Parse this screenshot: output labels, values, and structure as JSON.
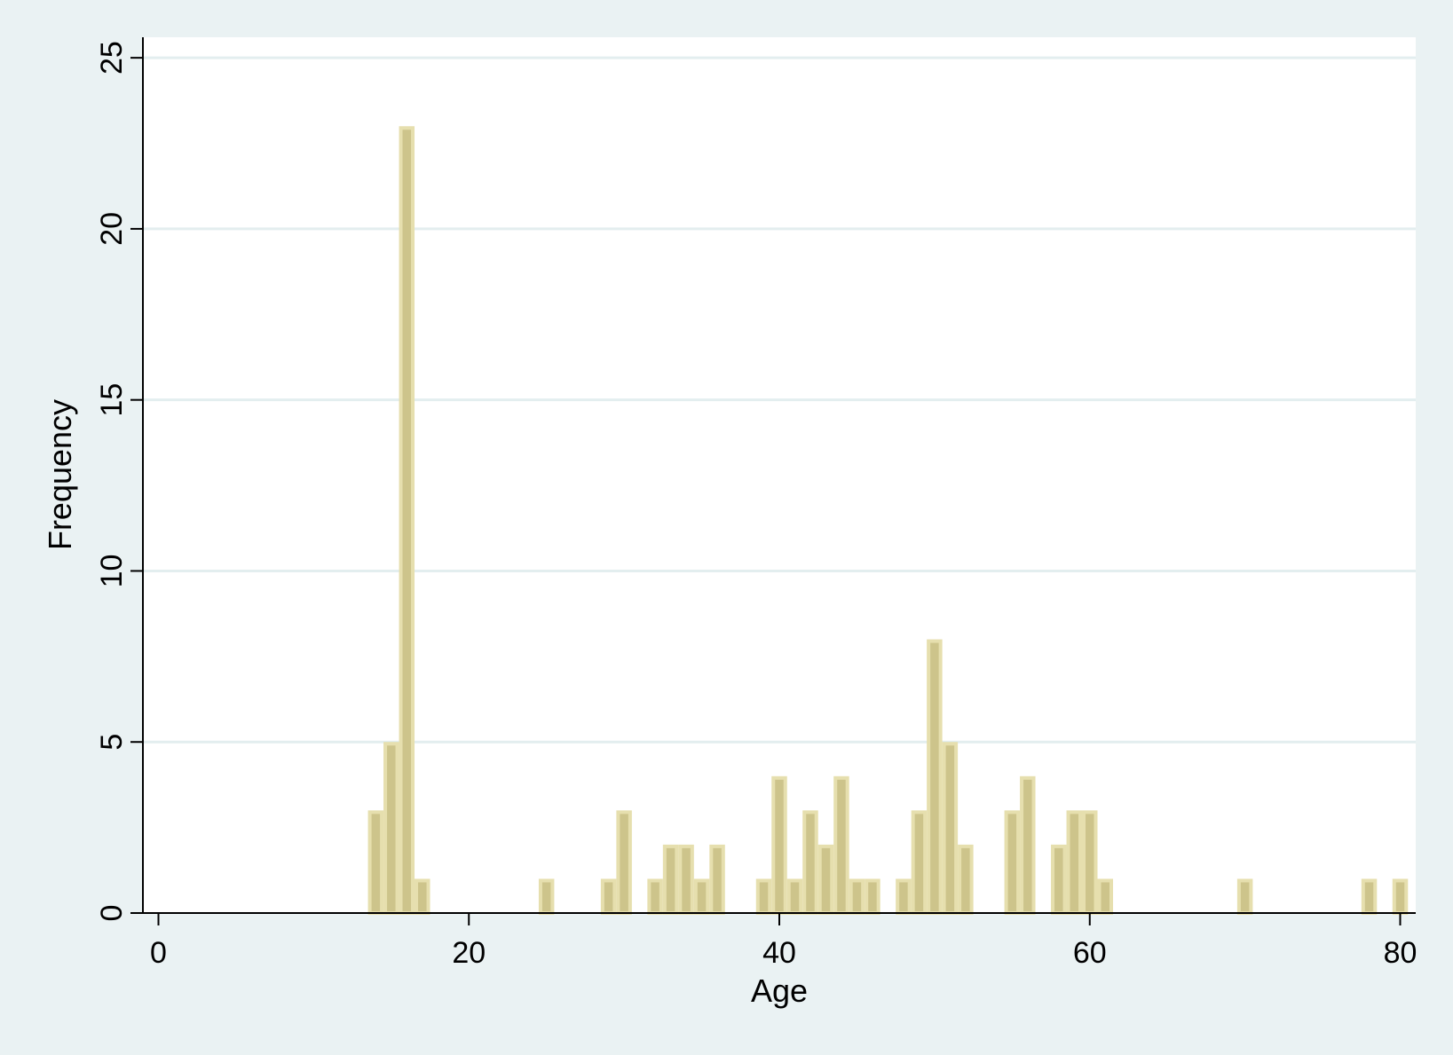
{
  "chart_data": {
    "type": "bar",
    "title": "",
    "xlabel": "Age",
    "ylabel": "Frequency",
    "xlim": [
      -1,
      81
    ],
    "ylim": [
      0,
      25.6
    ],
    "x_ticks": [
      "0",
      "20",
      "40",
      "60",
      "80"
    ],
    "y_ticks": [
      "0",
      "5",
      "10",
      "15",
      "20",
      "25"
    ],
    "grid": true,
    "bin_width": 1,
    "x": [
      14,
      15,
      16,
      17,
      25,
      29,
      30,
      32,
      33,
      34,
      35,
      36,
      39,
      40,
      41,
      42,
      43,
      44,
      45,
      46,
      48,
      49,
      50,
      51,
      52,
      55,
      56,
      58,
      59,
      60,
      61,
      70,
      78,
      80
    ],
    "values": [
      3,
      5,
      23,
      1,
      1,
      1,
      3,
      1,
      2,
      2,
      1,
      2,
      1,
      4,
      1,
      3,
      2,
      4,
      1,
      1,
      1,
      3,
      8,
      5,
      2,
      3,
      4,
      2,
      3,
      3,
      1,
      1,
      1,
      1
    ],
    "colors": {
      "bar_fill": "#cdc48b",
      "bar_edge": "#e6dfae",
      "plot_background": "#ffffff",
      "page_background": "#eaf2f3",
      "grid": "#e3eeef"
    }
  }
}
